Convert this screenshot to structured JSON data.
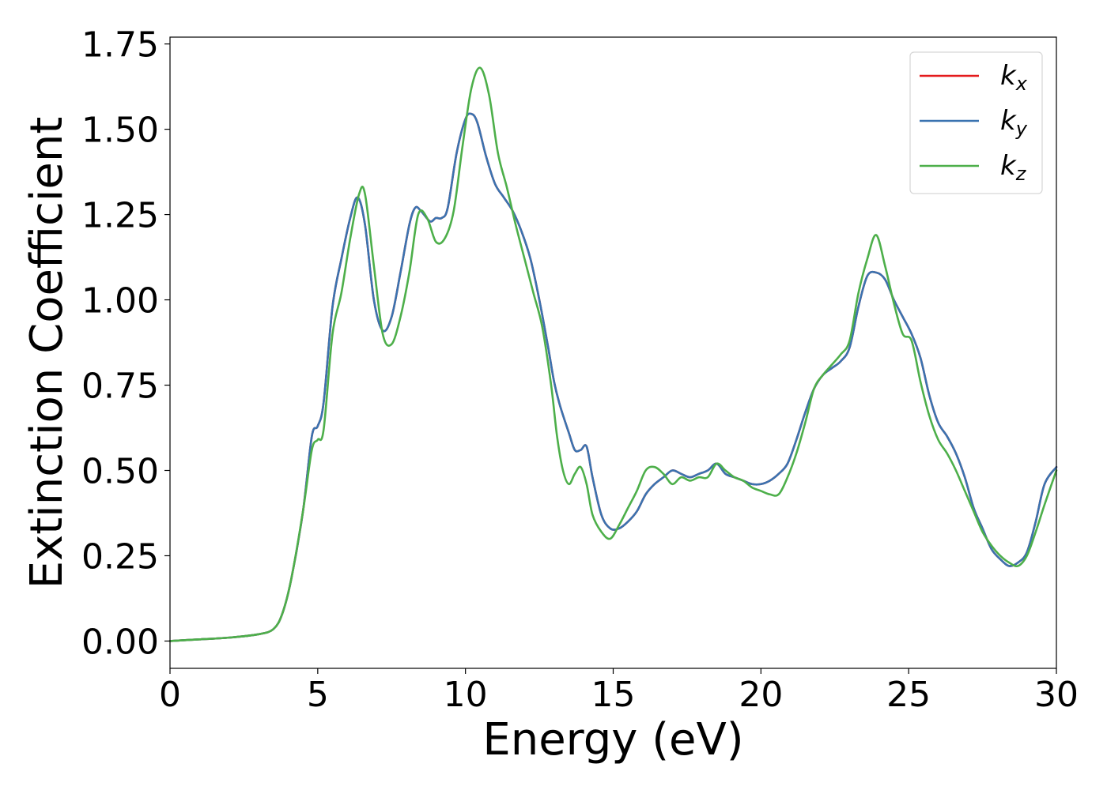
{
  "chart_data": {
    "type": "line",
    "xlabel": "Energy (eV)",
    "ylabel": "Extinction Coefficient",
    "xlim": [
      0,
      30
    ],
    "ylim": [
      -0.08,
      1.77
    ],
    "xticks": [
      0,
      5,
      10,
      15,
      20,
      25,
      30
    ],
    "xtick_labels": [
      "0",
      "5",
      "10",
      "15",
      "20",
      "25",
      "30"
    ],
    "yticks": [
      0.0,
      0.25,
      0.5,
      0.75,
      1.0,
      1.25,
      1.5,
      1.75
    ],
    "ytick_labels": [
      "0.00",
      "0.25",
      "0.50",
      "0.75",
      "1.00",
      "1.25",
      "1.50",
      "1.75"
    ],
    "grid": false,
    "legend_position": "top-right",
    "series": [
      {
        "name": "k_x",
        "base": "k",
        "sub": "x",
        "color": "#e41a1c",
        "x": [
          0,
          1,
          2,
          3,
          3.5,
          3.8,
          4.1,
          4.5,
          4.8,
          5.0,
          5.2,
          5.5,
          5.8,
          6.1,
          6.35,
          6.6,
          6.9,
          7.2,
          7.5,
          7.8,
          8.1,
          8.3,
          8.5,
          8.8,
          9.0,
          9.2,
          9.4,
          9.7,
          10.0,
          10.2,
          10.4,
          10.7,
          11.0,
          11.3,
          11.6,
          11.9,
          12.2,
          12.5,
          12.8,
          13.0,
          13.2,
          13.5,
          13.7,
          13.9,
          14.1,
          14.3,
          14.6,
          14.9,
          15.2,
          15.5,
          15.8,
          16.1,
          16.4,
          16.7,
          17.0,
          17.3,
          17.6,
          17.9,
          18.2,
          18.5,
          18.8,
          19.1,
          19.4,
          19.7,
          20.0,
          20.3,
          20.6,
          20.9,
          21.2,
          21.5,
          21.8,
          22.1,
          22.4,
          22.7,
          23.0,
          23.3,
          23.6,
          23.9,
          24.2,
          24.5,
          24.8,
          25.1,
          25.4,
          25.7,
          26.0,
          26.3,
          26.6,
          26.9,
          27.2,
          27.5,
          27.8,
          28.1,
          28.4,
          28.7,
          29.0,
          29.3,
          29.6,
          30.0
        ],
        "y": [
          0.0,
          0.005,
          0.01,
          0.02,
          0.035,
          0.08,
          0.18,
          0.38,
          0.6,
          0.63,
          0.7,
          0.98,
          1.12,
          1.24,
          1.3,
          1.22,
          1.0,
          0.91,
          0.95,
          1.08,
          1.22,
          1.27,
          1.26,
          1.23,
          1.24,
          1.24,
          1.27,
          1.43,
          1.53,
          1.545,
          1.52,
          1.42,
          1.34,
          1.3,
          1.26,
          1.2,
          1.12,
          1.0,
          0.86,
          0.76,
          0.69,
          0.61,
          0.56,
          0.56,
          0.57,
          0.48,
          0.37,
          0.33,
          0.33,
          0.35,
          0.38,
          0.43,
          0.46,
          0.48,
          0.5,
          0.49,
          0.48,
          0.49,
          0.5,
          0.52,
          0.49,
          0.48,
          0.47,
          0.46,
          0.46,
          0.47,
          0.49,
          0.52,
          0.59,
          0.67,
          0.74,
          0.78,
          0.8,
          0.82,
          0.86,
          0.98,
          1.07,
          1.08,
          1.06,
          1.0,
          0.95,
          0.9,
          0.83,
          0.72,
          0.64,
          0.6,
          0.55,
          0.48,
          0.39,
          0.33,
          0.27,
          0.24,
          0.22,
          0.23,
          0.26,
          0.35,
          0.46,
          0.51
        ]
      },
      {
        "name": "k_y",
        "base": "k",
        "sub": "y",
        "color": "#3a73b0",
        "x": [
          0,
          1,
          2,
          3,
          3.5,
          3.8,
          4.1,
          4.5,
          4.8,
          5.0,
          5.2,
          5.5,
          5.8,
          6.1,
          6.35,
          6.6,
          6.9,
          7.2,
          7.5,
          7.8,
          8.1,
          8.3,
          8.5,
          8.8,
          9.0,
          9.2,
          9.4,
          9.7,
          10.0,
          10.2,
          10.4,
          10.7,
          11.0,
          11.3,
          11.6,
          11.9,
          12.2,
          12.5,
          12.8,
          13.0,
          13.2,
          13.5,
          13.7,
          13.9,
          14.1,
          14.3,
          14.6,
          14.9,
          15.2,
          15.5,
          15.8,
          16.1,
          16.4,
          16.7,
          17.0,
          17.3,
          17.6,
          17.9,
          18.2,
          18.5,
          18.8,
          19.1,
          19.4,
          19.7,
          20.0,
          20.3,
          20.6,
          20.9,
          21.2,
          21.5,
          21.8,
          22.1,
          22.4,
          22.7,
          23.0,
          23.3,
          23.6,
          23.9,
          24.2,
          24.5,
          24.8,
          25.1,
          25.4,
          25.7,
          26.0,
          26.3,
          26.6,
          26.9,
          27.2,
          27.5,
          27.8,
          28.1,
          28.4,
          28.7,
          29.0,
          29.3,
          29.6,
          30.0
        ],
        "y": [
          0.0,
          0.005,
          0.01,
          0.02,
          0.035,
          0.08,
          0.18,
          0.38,
          0.6,
          0.63,
          0.7,
          0.98,
          1.12,
          1.24,
          1.3,
          1.22,
          1.0,
          0.91,
          0.95,
          1.08,
          1.22,
          1.27,
          1.26,
          1.23,
          1.24,
          1.24,
          1.27,
          1.43,
          1.53,
          1.545,
          1.52,
          1.42,
          1.34,
          1.3,
          1.26,
          1.2,
          1.12,
          1.0,
          0.86,
          0.76,
          0.69,
          0.61,
          0.56,
          0.56,
          0.57,
          0.48,
          0.37,
          0.33,
          0.33,
          0.35,
          0.38,
          0.43,
          0.46,
          0.48,
          0.5,
          0.49,
          0.48,
          0.49,
          0.5,
          0.52,
          0.49,
          0.48,
          0.47,
          0.46,
          0.46,
          0.47,
          0.49,
          0.52,
          0.59,
          0.67,
          0.74,
          0.78,
          0.8,
          0.82,
          0.86,
          0.98,
          1.07,
          1.08,
          1.06,
          1.0,
          0.95,
          0.9,
          0.83,
          0.72,
          0.64,
          0.6,
          0.55,
          0.48,
          0.39,
          0.33,
          0.27,
          0.24,
          0.22,
          0.23,
          0.26,
          0.35,
          0.46,
          0.51
        ]
      },
      {
        "name": "k_z",
        "base": "k",
        "sub": "z",
        "color": "#4daf4a",
        "x": [
          0,
          1,
          2,
          3,
          3.5,
          3.8,
          4.1,
          4.5,
          4.8,
          5.0,
          5.2,
          5.5,
          5.8,
          6.1,
          6.4,
          6.6,
          6.9,
          7.2,
          7.5,
          7.8,
          8.1,
          8.4,
          8.7,
          9.0,
          9.3,
          9.6,
          9.9,
          10.2,
          10.5,
          10.8,
          11.1,
          11.4,
          11.7,
          12.0,
          12.3,
          12.6,
          12.9,
          13.1,
          13.3,
          13.5,
          13.7,
          13.9,
          14.1,
          14.3,
          14.6,
          14.9,
          15.2,
          15.5,
          15.8,
          16.1,
          16.4,
          16.7,
          17.0,
          17.3,
          17.6,
          17.9,
          18.2,
          18.5,
          18.8,
          19.1,
          19.4,
          19.7,
          20.0,
          20.3,
          20.6,
          20.9,
          21.2,
          21.5,
          21.8,
          22.1,
          22.4,
          22.7,
          23.0,
          23.3,
          23.6,
          23.9,
          24.2,
          24.5,
          24.8,
          25.1,
          25.4,
          25.7,
          26.0,
          26.3,
          26.6,
          26.9,
          27.2,
          27.5,
          27.8,
          28.1,
          28.4,
          28.7,
          29.0,
          29.3,
          29.6,
          30.0
        ],
        "y": [
          0.0,
          0.005,
          0.01,
          0.02,
          0.035,
          0.08,
          0.18,
          0.38,
          0.56,
          0.59,
          0.62,
          0.9,
          1.02,
          1.18,
          1.31,
          1.31,
          1.1,
          0.9,
          0.87,
          0.95,
          1.08,
          1.25,
          1.24,
          1.17,
          1.18,
          1.26,
          1.45,
          1.62,
          1.68,
          1.6,
          1.43,
          1.33,
          1.22,
          1.12,
          1.02,
          0.92,
          0.75,
          0.6,
          0.5,
          0.46,
          0.49,
          0.51,
          0.46,
          0.37,
          0.32,
          0.3,
          0.34,
          0.39,
          0.44,
          0.5,
          0.51,
          0.49,
          0.46,
          0.48,
          0.47,
          0.48,
          0.48,
          0.52,
          0.5,
          0.48,
          0.47,
          0.45,
          0.44,
          0.43,
          0.43,
          0.48,
          0.55,
          0.64,
          0.74,
          0.78,
          0.81,
          0.84,
          0.88,
          1.02,
          1.12,
          1.19,
          1.1,
          0.99,
          0.9,
          0.88,
          0.76,
          0.66,
          0.59,
          0.55,
          0.5,
          0.44,
          0.38,
          0.32,
          0.28,
          0.25,
          0.23,
          0.22,
          0.25,
          0.32,
          0.4,
          0.5
        ]
      }
    ]
  }
}
